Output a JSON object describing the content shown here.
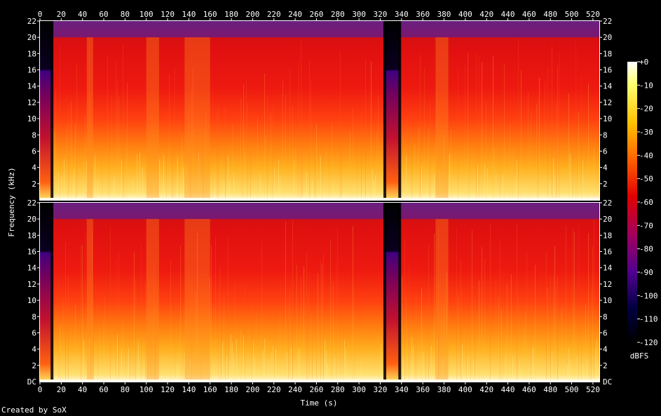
{
  "chart_data": {
    "type": "heatmap",
    "title": "",
    "xlabel": "Time (s)",
    "ylabel": "Frequency (kHz)",
    "x_ticks": [
      0,
      20,
      40,
      60,
      80,
      100,
      120,
      140,
      160,
      180,
      200,
      220,
      240,
      260,
      280,
      300,
      320,
      340,
      360,
      380,
      400,
      420,
      440,
      460,
      480,
      500,
      520
    ],
    "xlim": [
      0,
      526
    ],
    "channels": [
      {
        "name": "",
        "y_ticks": [
          "2",
          "4",
          "6",
          "8",
          "10",
          "12",
          "14",
          "16",
          "18",
          "20",
          "22"
        ],
        "y_ticks_bottom_label": ""
      },
      {
        "name": "",
        "y_ticks": [
          "DC",
          "2",
          "4",
          "6",
          "8",
          "10",
          "12",
          "14",
          "16",
          "18",
          "20",
          "22"
        ],
        "y_ticks_bottom_label": "DC"
      }
    ],
    "ylim_khz": [
      0,
      22
    ],
    "colorbar": {
      "label": "dBFS",
      "range": [
        -120,
        0
      ],
      "ticks": [
        "+0",
        "-10",
        "-20",
        "-30",
        "-40",
        "-50",
        "-60",
        "-70",
        "-80",
        "-90",
        "-100",
        "-110",
        "-120"
      ],
      "colors_top_to_bottom": [
        "#ffffff",
        "#ffff70",
        "#ffc000",
        "#ff6000",
        "#e00000",
        "#a00060",
        "#500090",
        "#000040",
        "#000000"
      ]
    },
    "segments_seconds": {
      "quiet_intro": [
        0,
        12
      ],
      "quiet_gap": [
        323,
        339
      ],
      "bright_blocks": [
        [
          44,
          50
        ],
        [
          100,
          112
        ],
        [
          136,
          160
        ],
        [
          372,
          384
        ]
      ]
    },
    "bandwidth_limit_khz": 16,
    "brickwall_cutoff_khz": 20
  },
  "footer": {
    "credit": "Created by SoX"
  }
}
